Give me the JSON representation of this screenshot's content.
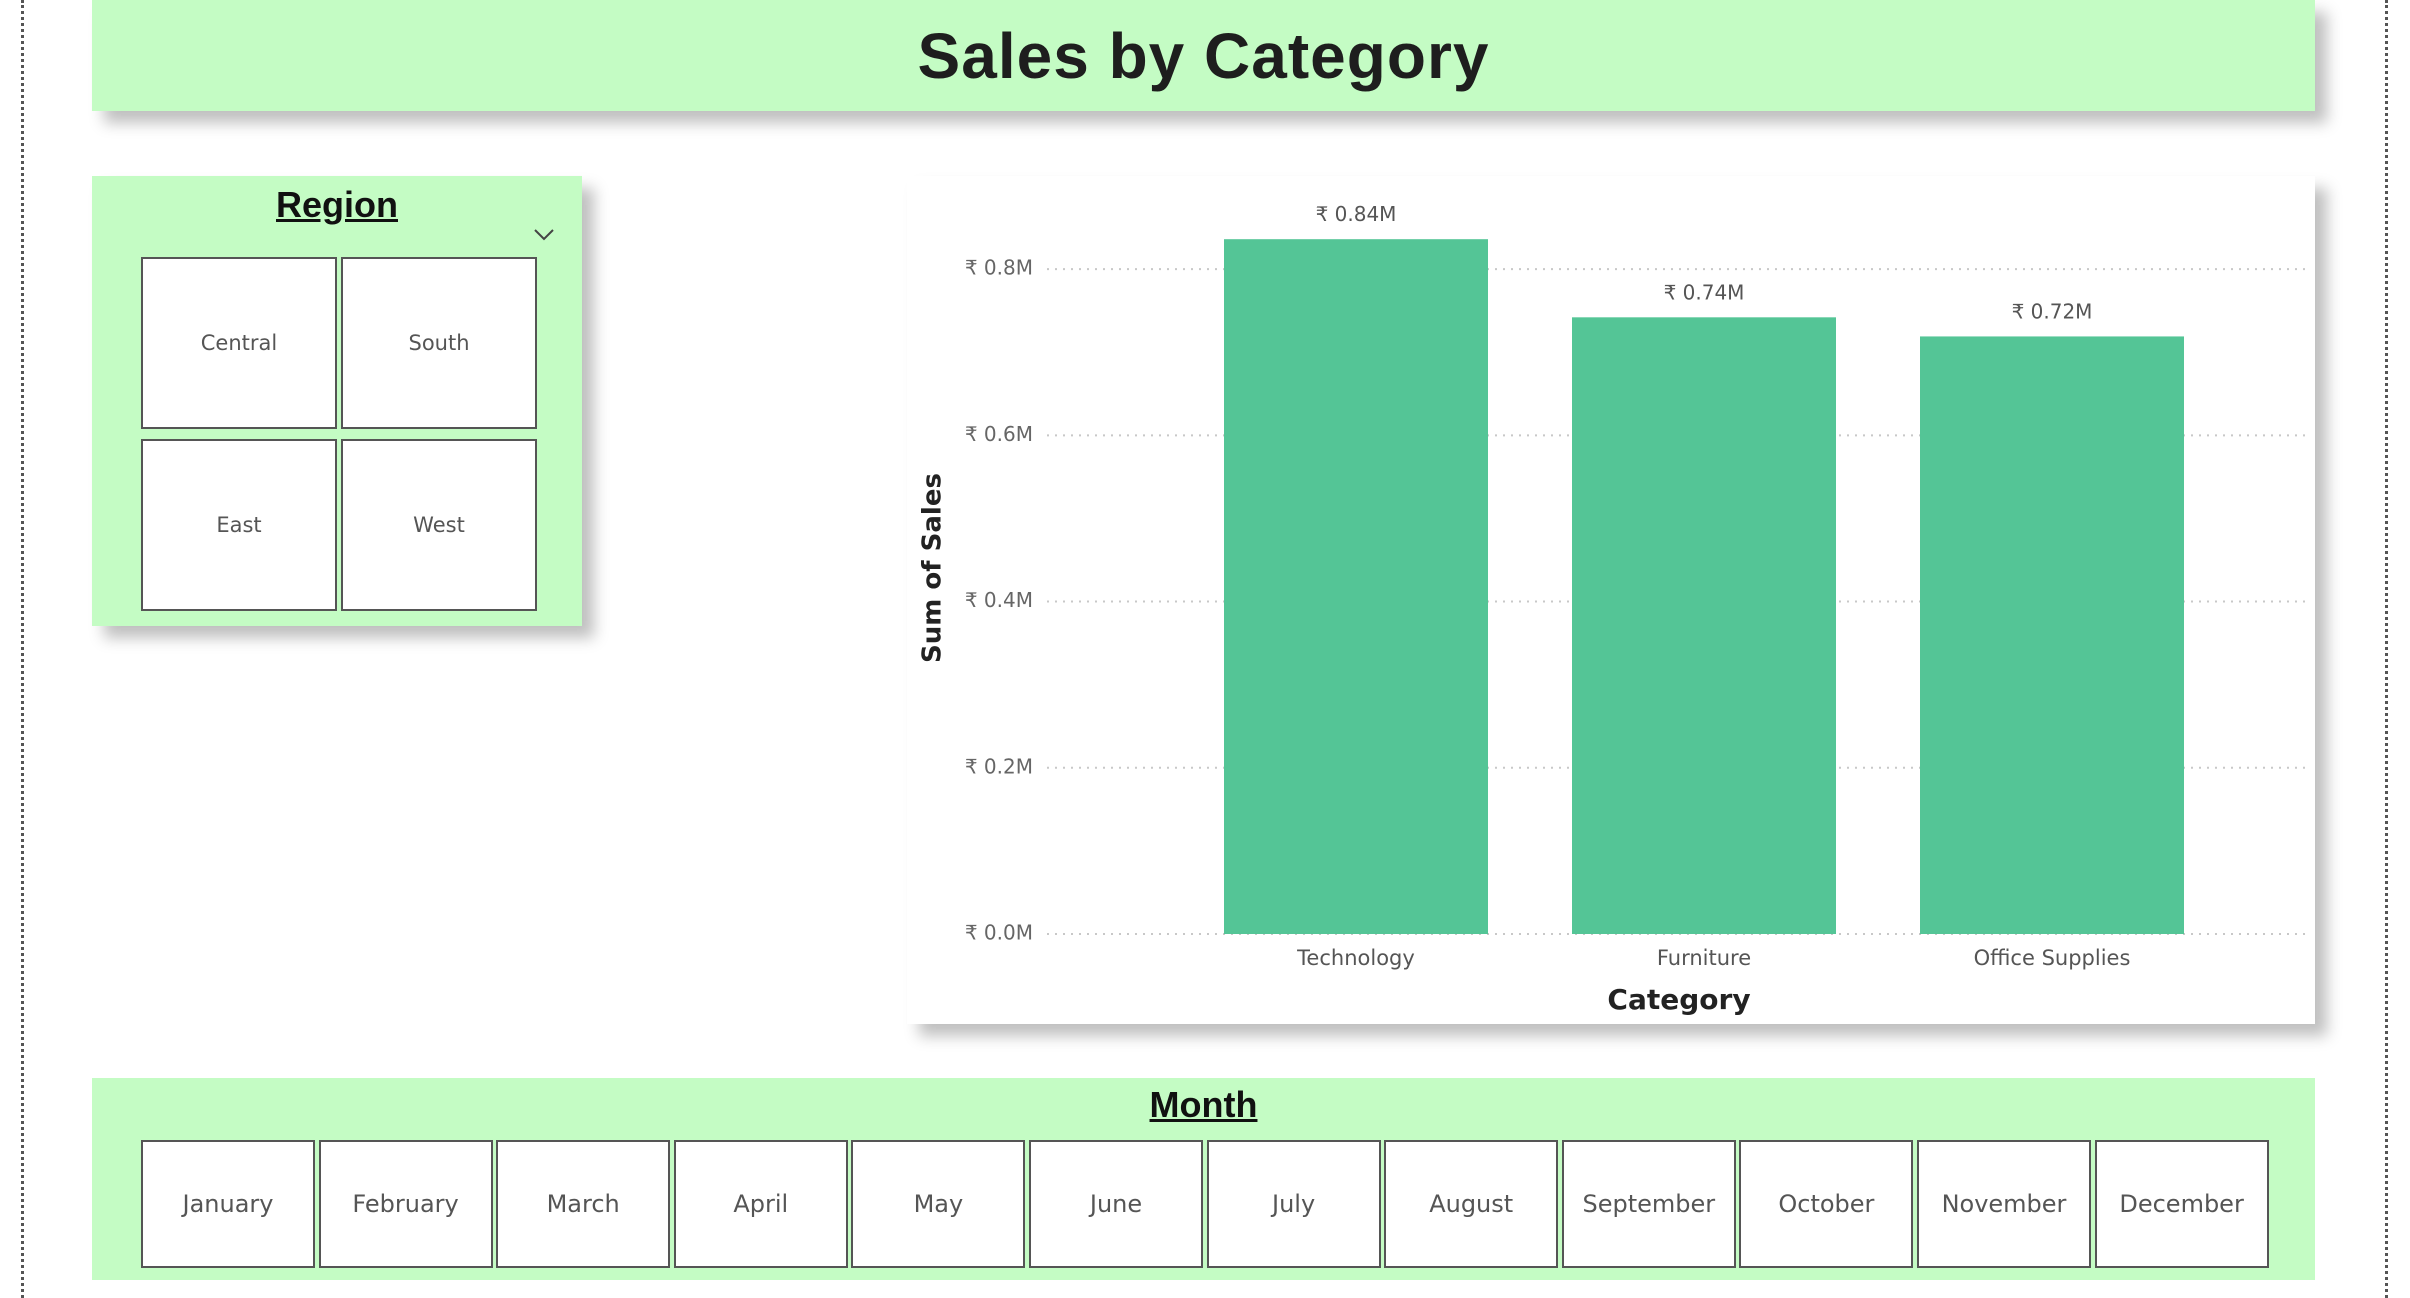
{
  "page": {
    "title": "Sales by Category",
    "banner_color": "#c4fcc4"
  },
  "region_slicer": {
    "title": "Region",
    "card_color": "#c4fcc4",
    "expand_icon": "chevron-down-icon",
    "options": [
      "Central",
      "South",
      "East",
      "West"
    ]
  },
  "month_slicer": {
    "title": "Month",
    "card_color": "#c4fcc4",
    "options": [
      "January",
      "February",
      "March",
      "April",
      "May",
      "June",
      "July",
      "August",
      "September",
      "October",
      "November",
      "December"
    ]
  },
  "chart_data": {
    "type": "bar",
    "title": "",
    "xlabel": "Category",
    "ylabel": "Sum of Sales",
    "categories": [
      "Technology",
      "Furniture",
      "Office Supplies"
    ],
    "values": [
      0.836,
      0.742,
      0.719
    ],
    "data_labels": [
      "₹ 0.84M",
      "₹ 0.74M",
      "₹ 0.72M"
    ],
    "y_ticks": [
      0.0,
      0.2,
      0.4,
      0.6,
      0.8
    ],
    "y_tick_labels": [
      "₹ 0.0M",
      "₹ 0.2M",
      "₹ 0.4M",
      "₹ 0.6M",
      "₹ 0.8M"
    ],
    "ylim": [
      0,
      0.9
    ],
    "unit": "M",
    "bar_color": "#54c596",
    "grid": true,
    "legend": false
  }
}
